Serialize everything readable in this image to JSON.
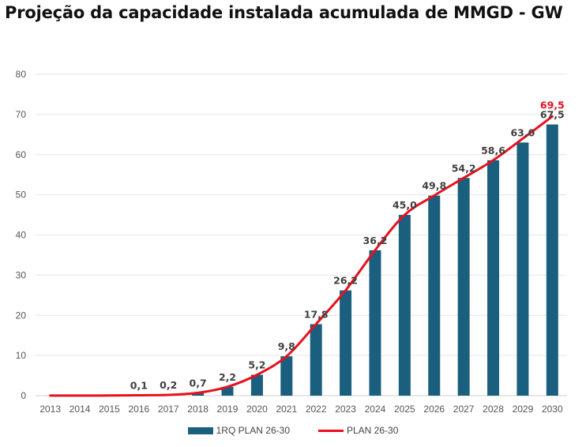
{
  "title": "Projeção da capacidade instalada acumulada de MMGD - GW",
  "colors": {
    "bar": "#1a5f7e",
    "line": "#e8101e",
    "grid": "#e6e6e6",
    "axis": "#cfcfcf"
  },
  "chart_data": {
    "type": "bar",
    "title": "Projeção da capacidade instalada acumulada de MMGD - GW",
    "categories": [
      "2013",
      "2014",
      "2015",
      "2016",
      "2017",
      "2018",
      "2019",
      "2020",
      "2021",
      "2022",
      "2023",
      "2024",
      "2025",
      "2026",
      "2027",
      "2028",
      "2029",
      "2030"
    ],
    "ylim": [
      0,
      80
    ],
    "yticks": [
      0,
      10,
      20,
      30,
      40,
      50,
      60,
      70,
      80
    ],
    "grid": true,
    "legend_position": "bottom",
    "series": [
      {
        "name": "1RQ PLAN 26-30",
        "kind": "bar",
        "values": [
          0.01,
          0.02,
          0.03,
          0.1,
          0.2,
          0.7,
          2.2,
          5.2,
          9.8,
          17.8,
          26.2,
          36.2,
          45.0,
          49.8,
          54.2,
          58.6,
          63.0,
          67.5
        ],
        "labels": [
          "",
          "",
          "",
          "0,1",
          "0,2",
          "0,7",
          "2,2",
          "5,2",
          "9,8",
          "17,8",
          "26,2",
          "36,2",
          "45,0",
          "49,8",
          "54,2",
          "58,6",
          "63,0",
          "67,5"
        ]
      },
      {
        "name": "PLAN 26-30",
        "kind": "line",
        "values": [
          0.01,
          0.02,
          0.03,
          0.1,
          0.2,
          0.7,
          2.2,
          5.2,
          9.8,
          17.8,
          26.2,
          36.2,
          45.0,
          49.8,
          54.2,
          58.6,
          64.0,
          69.5
        ],
        "end_label": "69,5"
      }
    ]
  }
}
